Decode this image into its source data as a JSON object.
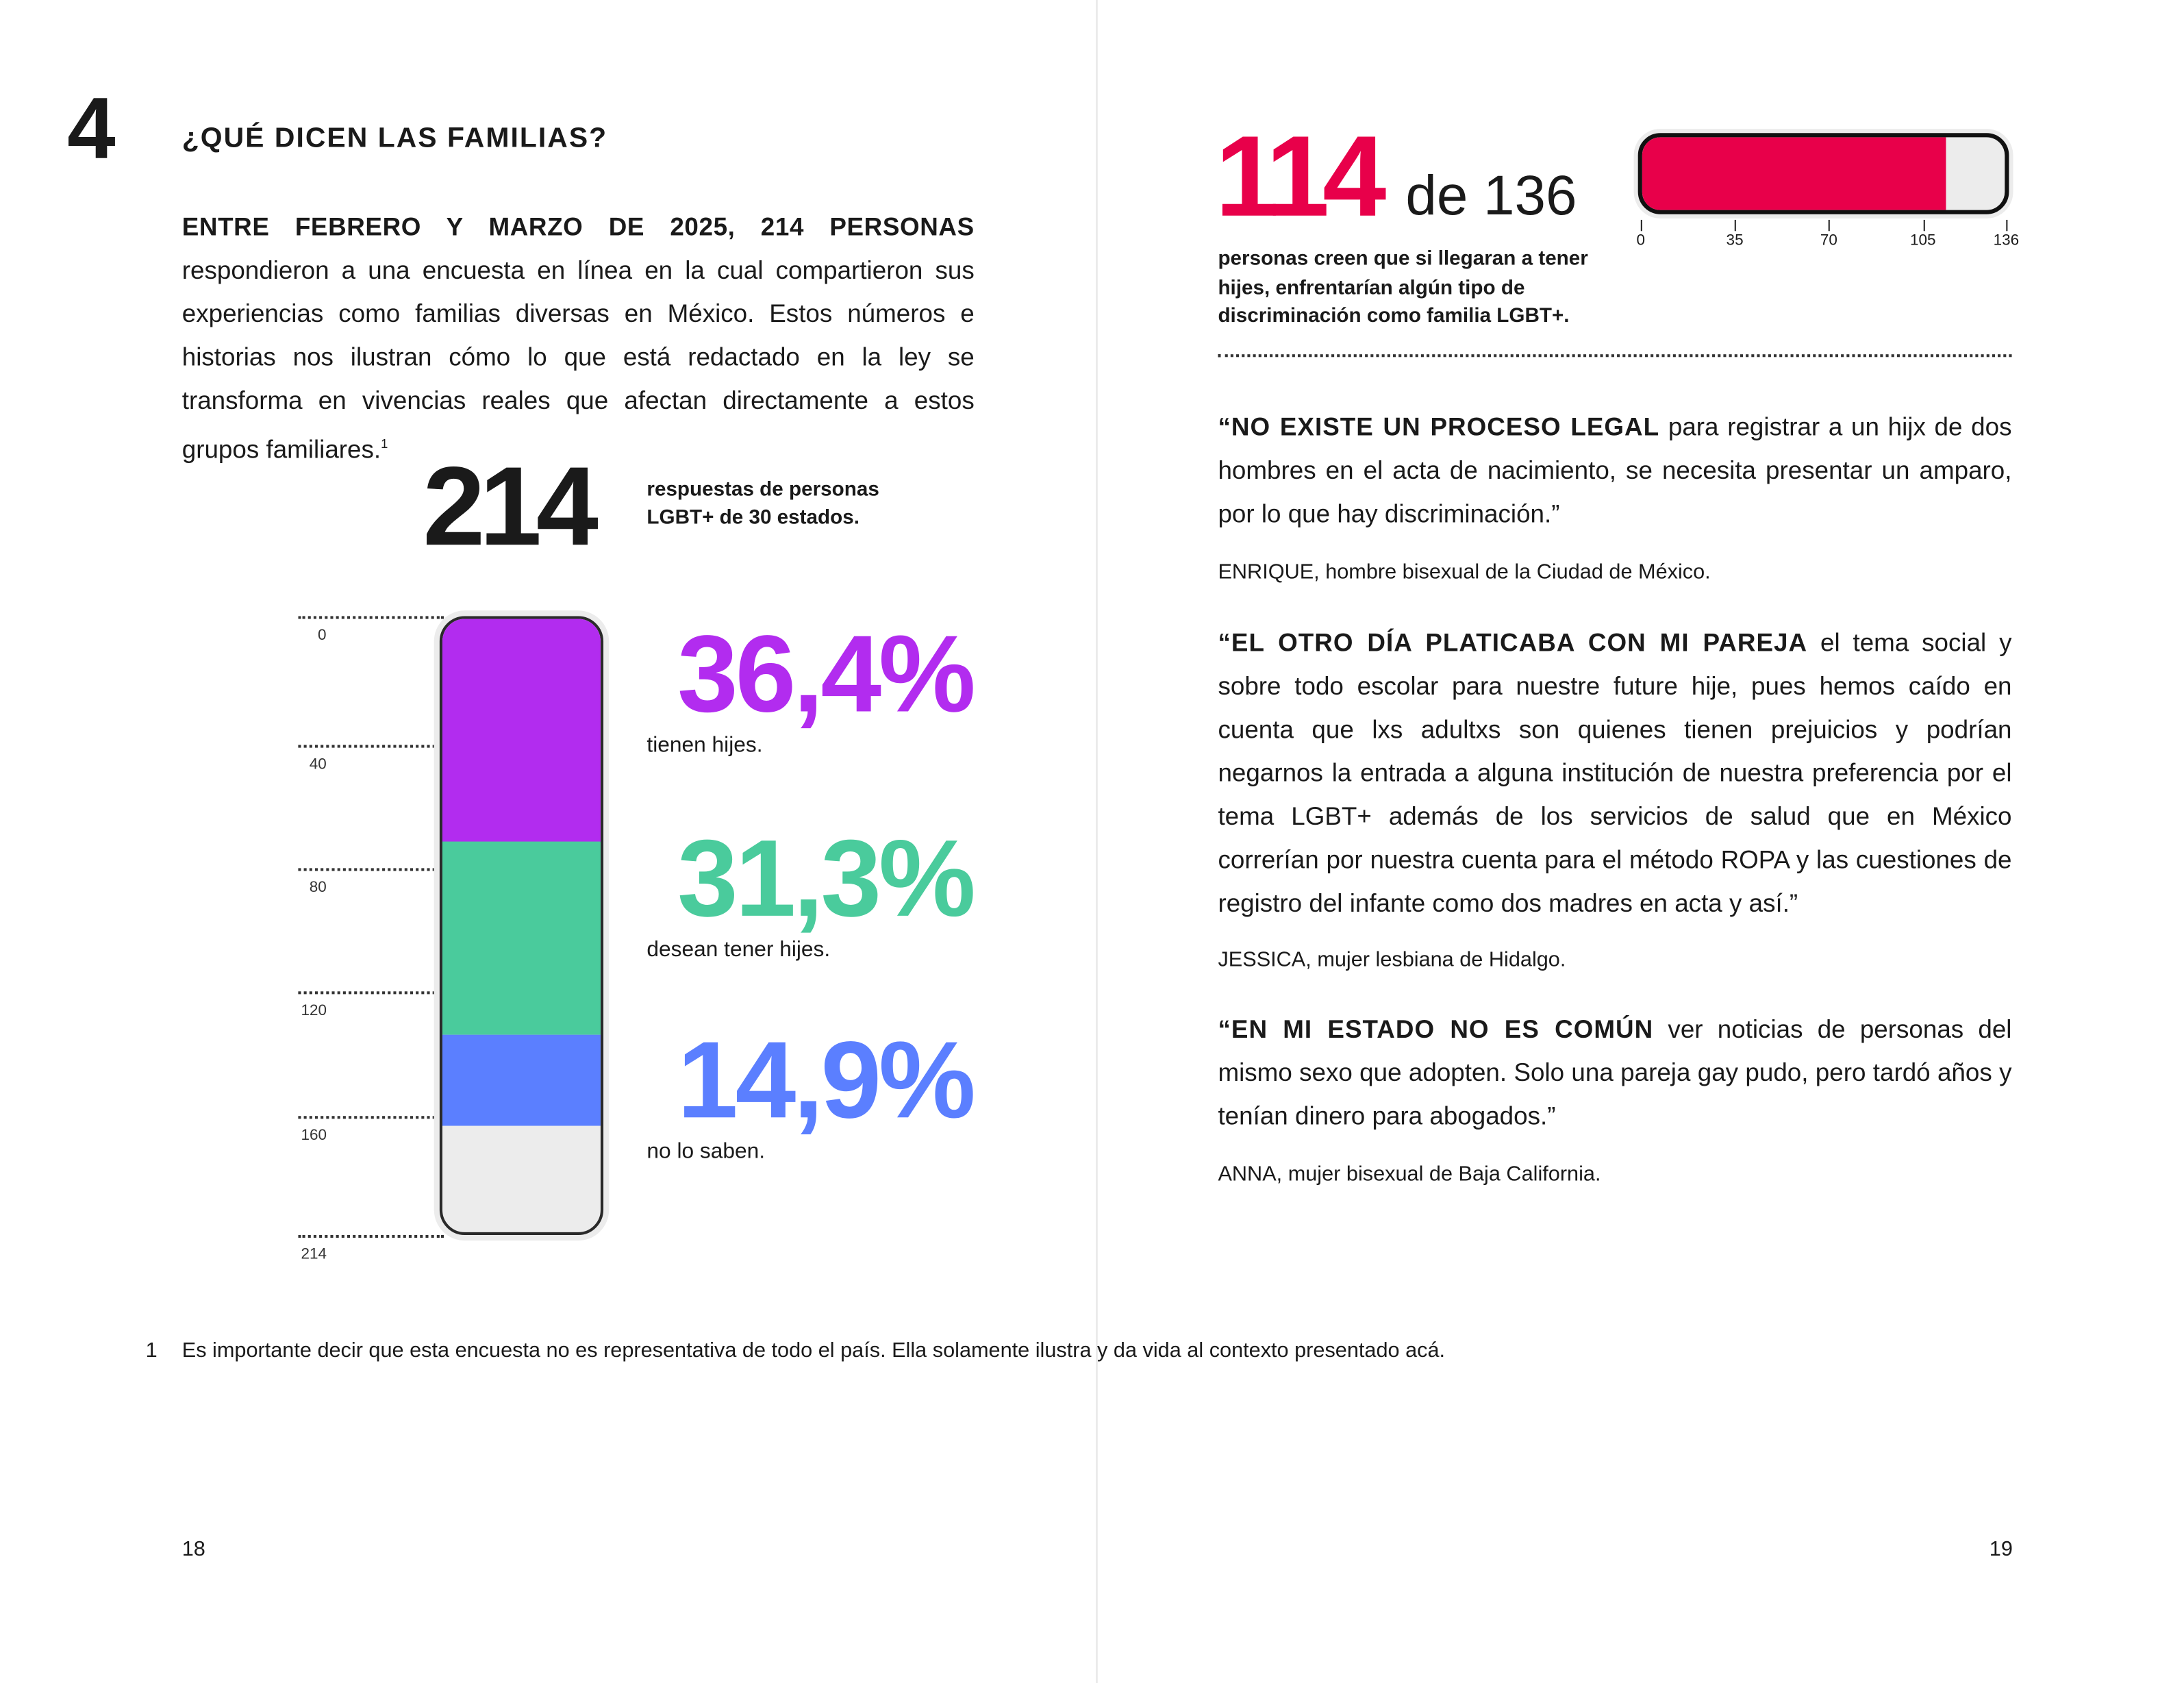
{
  "left_page": {
    "chapter_number": "4",
    "title": "¿QUÉ DICEN LAS FAMILIAS?",
    "intro_bold": "ENTRE FEBRERO Y MARZO DE 2025, 214 PERSONAS",
    "intro_text": " respondieron a una encuesta en línea en la cual compartieron sus experiencias como familias diversas en México. Estos números e historias nos ilustran cómo lo que está redactado en la ley se transforma en vivencias reales que afectan directamente a estos grupos familiares.",
    "intro_footnote_ref": "1",
    "total_number": "214",
    "total_caption": "respuestas de personas LGBT+ de 30 estados.",
    "footnote_number": "1",
    "footnote_text": "Es importante decir que esta encuesta no es representativa de todo el país. Ella solamente ilustra y da vida al contexto presentado acá.",
    "page_number": "18"
  },
  "chart_data": [
    {
      "type": "bar",
      "orientation": "vertical-stacked",
      "total": 214,
      "axis_ticks": [
        0,
        40,
        80,
        120,
        160,
        214
      ],
      "series": [
        {
          "name": "tienen hijes.",
          "percent_label": "36,4%",
          "value": 36.4,
          "color": "#b22cef"
        },
        {
          "name": "desean tener hijes.",
          "percent_label": "31,3%",
          "value": 31.3,
          "color": "#4acb9c"
        },
        {
          "name": "no lo saben.",
          "percent_label": "14,9%",
          "value": 14.9,
          "color": "#5b7fff"
        }
      ],
      "remainder_color": "#ececec"
    },
    {
      "type": "bar",
      "orientation": "horizontal",
      "value": 114,
      "max": 136,
      "value_label": "114",
      "of_label": "de 136",
      "axis_ticks": [
        0,
        35,
        70,
        105,
        136
      ],
      "color": "#e8004a",
      "caption": "personas creen que si llegaran a tener hijes, enfrentarían algún tipo de discriminación como familia LGBT+."
    }
  ],
  "right_page": {
    "quotes": [
      {
        "bold": "“NO EXISTE UN PROCESO LEGAL",
        "text": " para registrar a un hijx de dos hombres en el acta de nacimiento, se necesita presentar un amparo, por lo que hay discriminación.”",
        "author": "ENRIQUE",
        "author_desc": ", hombre bisexual de la Ciudad de México."
      },
      {
        "bold": "“EL OTRO DÍA PLATICABA CON MI PAREJA",
        "text": " el tema social y sobre todo escolar para nuestre future hije, pues hemos caído en cuenta que lxs adultxs son quienes tienen prejuicios y podrían negarnos la entrada a alguna institución de nuestra preferencia por el tema LGBT+ además de los servicios de salud que en México correrían por nuestra cuenta para el método ROPA y las cuestiones de registro del infante como dos madres en acta y así.”",
        "author": "JESSICA",
        "author_desc": ", mujer lesbiana de Hidalgo."
      },
      {
        "bold": "“EN MI ESTADO NO ES COMÚN",
        "text": " ver noticias de personas del mismo sexo que adopten. Solo una pareja gay pudo, pero tardó años y tenían dinero para abogados.”",
        "author": "ANNA",
        "author_desc": ", mujer bisexual de Baja California."
      }
    ],
    "page_number": "19"
  }
}
